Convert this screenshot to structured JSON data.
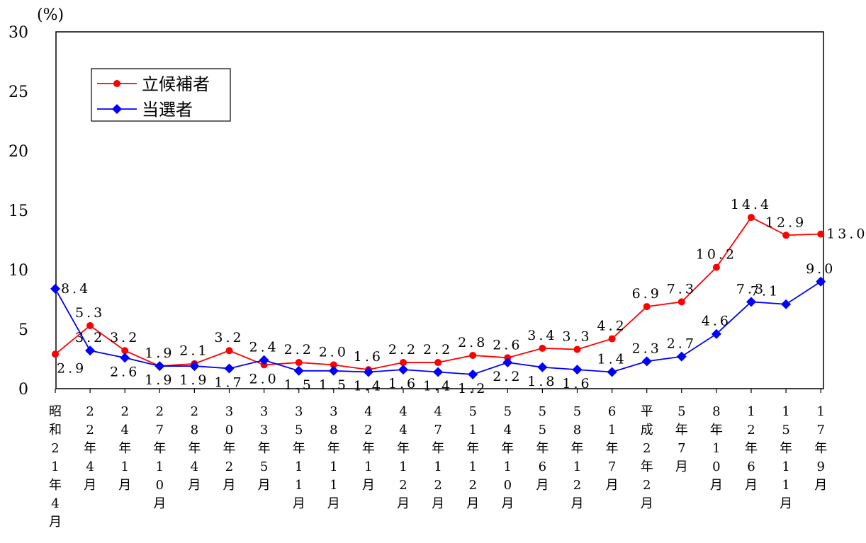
{
  "chart_data": {
    "type": "line",
    "unit_label": "(%)",
    "ylim": [
      0,
      30
    ],
    "yticks": [
      0,
      5,
      10,
      15,
      20,
      25,
      30
    ],
    "grid": false,
    "legend_position": "top-left",
    "categories": [
      "昭和21年4月",
      "22年4月",
      "24年1月",
      "27年10月",
      "28年4月",
      "30年2月",
      "33年5月",
      "35年11月",
      "38年11月",
      "42年1月",
      "44年12月",
      "47年12月",
      "51年12月",
      "54年10月",
      "55年6月",
      "58年12月",
      "61年7月",
      "平成2年2月",
      "5年7月",
      "8年10月",
      "12年6月",
      "15年11月",
      "17年9月"
    ],
    "series": [
      {
        "name": "立候補者",
        "color": "#ff0000",
        "marker": "circle",
        "values": [
          2.9,
          5.3,
          3.2,
          1.9,
          2.1,
          3.2,
          2.0,
          2.2,
          2.0,
          1.6,
          2.2,
          2.2,
          2.8,
          2.6,
          3.4,
          3.3,
          4.2,
          6.9,
          7.3,
          10.2,
          14.4,
          12.9,
          13.0
        ],
        "labels": [
          "2.9",
          "5.3",
          "3.2",
          "1.9",
          "2.1",
          "3.2",
          "2.0",
          "2.2",
          "2.0",
          "1.6",
          "2.2",
          "2.2",
          "2.8",
          "2.6",
          "3.4",
          "3.3",
          "4.2",
          "6.9",
          "7.3",
          "10.2",
          "14.4",
          "12.9",
          "13.0"
        ]
      },
      {
        "name": "当選者",
        "color": "#0000ff",
        "marker": "diamond",
        "values": [
          8.4,
          3.2,
          2.6,
          1.9,
          1.9,
          1.7,
          2.4,
          1.5,
          1.5,
          1.4,
          1.6,
          1.4,
          1.2,
          2.2,
          1.8,
          1.6,
          1.4,
          2.3,
          2.7,
          4.6,
          7.3,
          7.1,
          9.0
        ],
        "labels": [
          "8.4",
          "3.2",
          "2.6",
          "1.9",
          "1.9",
          "1.7",
          "2.4",
          "1.5",
          "1.5",
          "1.4",
          "1.6",
          "1.4",
          "1.2",
          "2.2",
          "1.8",
          "1.6",
          "1.4",
          "2.3",
          "2.7",
          "4.6",
          "7.3",
          "7.1",
          "9.0"
        ]
      }
    ]
  }
}
